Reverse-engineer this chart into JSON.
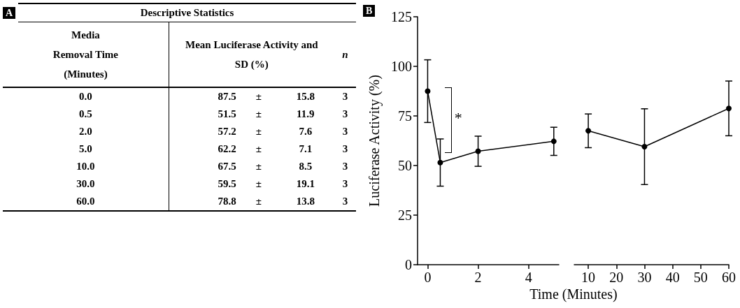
{
  "chart_data": [
    {
      "type": "other",
      "title": "Descriptive Statistics",
      "xlabel": "Media Removal Time (Minutes)",
      "categories": [
        "0.0",
        "0.5",
        "2.0",
        "5.0",
        "10.0",
        "30.0",
        "60.0"
      ],
      "annotations": [
        "A",
        "±"
      ],
      "data_labels": true,
      "series": [
        {
          "name": "Mean Luciferase Activity and SD (%)",
          "values": [
            87.5,
            51.5,
            57.2,
            62.2,
            67.5,
            59.5,
            78.8
          ]
        },
        {
          "values": [
            15.8,
            11.9,
            7.6,
            7.1,
            8.5,
            19.1,
            13.8
          ]
        },
        {
          "name": "n",
          "values": [
            3,
            3,
            3,
            3,
            3,
            3,
            3
          ]
        }
      ]
    },
    {
      "type": "line",
      "ylabel": "Luciferase Activity (%)",
      "x": [
        0,
        0.5,
        2,
        5
      ],
      "values": [
        87.5,
        51.5,
        57.2,
        62.2
      ],
      "errors": [
        15.8,
        11.9,
        7.6,
        7.1
      ],
      "xlim": [
        -0.4,
        5.2
      ],
      "xticks": [
        0,
        2,
        4
      ],
      "ylim": [
        0,
        125
      ],
      "yticks": [
        0,
        25,
        50,
        75,
        100,
        125
      ],
      "marker": "circle",
      "color": "#000000",
      "annotations": [
        "B",
        "*"
      ]
    },
    {
      "type": "line",
      "xlabel": "Time (Minutes)",
      "x": [
        10,
        30,
        60
      ],
      "values": [
        67.5,
        59.5,
        78.8
      ],
      "errors": [
        8.5,
        19.1,
        13.8
      ],
      "xlim": [
        5,
        60
      ],
      "xticks": [
        10,
        20,
        30,
        40,
        50,
        60
      ],
      "ylim": [
        0,
        125
      ],
      "yticks": [
        0,
        25,
        50,
        75,
        100,
        125
      ],
      "tick_labels": "x",
      "marker": "circle",
      "color": "#000000"
    }
  ]
}
